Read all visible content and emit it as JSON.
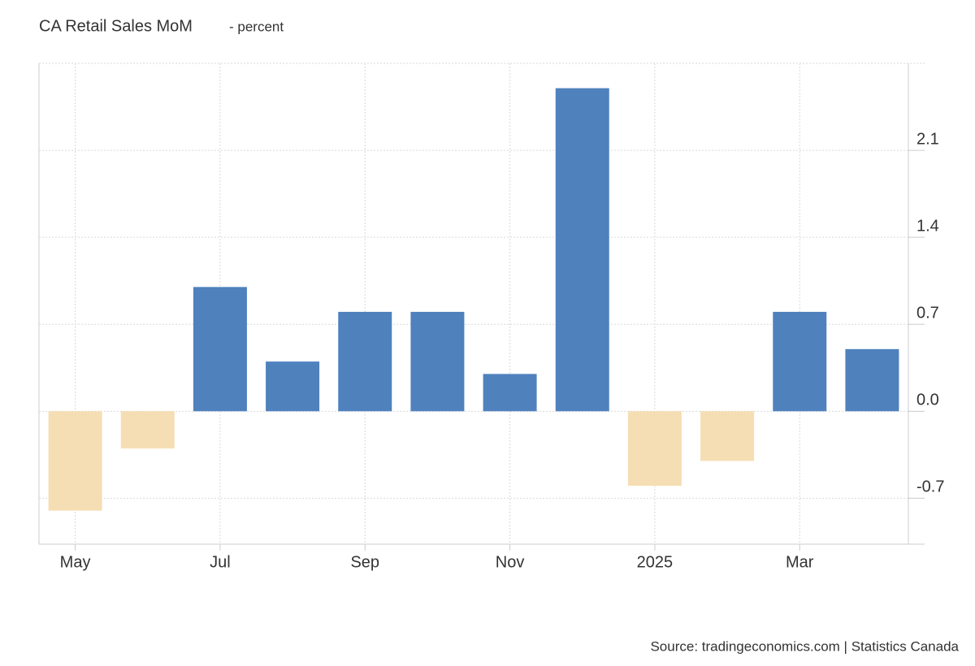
{
  "chart_data": {
    "type": "bar",
    "title": "CA Retail Sales MoM",
    "subtitle": "- percent",
    "source": "Source: tradingeconomics.com | Statistics Canada",
    "categories": [
      "May",
      null,
      "Jul",
      null,
      "Sep",
      null,
      "Nov",
      null,
      "2025",
      null,
      "Mar",
      null
    ],
    "values": [
      -0.8,
      -0.3,
      1.0,
      0.4,
      0.8,
      0.8,
      0.3,
      2.6,
      -0.6,
      -0.4,
      0.8,
      0.5
    ],
    "positive_color": "#4f81bd",
    "negative_color": "#f5deb3",
    "ylim": [
      -1.07,
      2.8
    ],
    "yticks": [
      -0.7,
      {
        "value": 0,
        "label": "0.0"
      },
      0.7,
      1.4,
      2.1
    ],
    "grid": true
  }
}
